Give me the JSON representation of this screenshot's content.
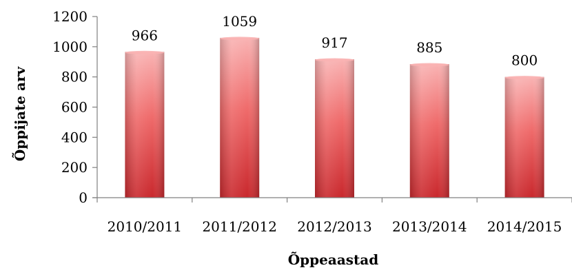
{
  "chart_data": {
    "type": "bar",
    "title": "",
    "categories": [
      "2010/2011",
      "2011/2012",
      "2012/2013",
      "2013/2014",
      "2014/2015"
    ],
    "values": [
      966,
      1059,
      917,
      885,
      800
    ],
    "data_labels": [
      "966",
      "1059",
      "917",
      "885",
      "800"
    ],
    "xlabel": "Õppeaastad",
    "ylabel": "Õppijate arv",
    "ylim": [
      0,
      1200
    ],
    "yticks": [
      0,
      200,
      400,
      600,
      800,
      1000,
      1200
    ],
    "grid": false,
    "legend": "none",
    "bar_colors": {
      "light": "#f9b3b3",
      "mid": "#ef6a6a",
      "dark": "#c9282d"
    }
  }
}
